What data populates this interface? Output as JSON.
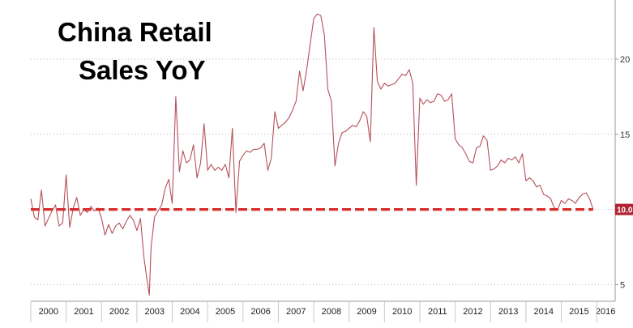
{
  "chart_data": {
    "type": "line",
    "title": "China Retail\nSales YoY",
    "title_lines": [
      "China Retail",
      "Sales YoY"
    ],
    "xlabel": "",
    "ylabel": "",
    "x_categories": [
      "2000",
      "2001",
      "2002",
      "2003",
      "2004",
      "2005",
      "2006",
      "2007",
      "2008",
      "2009",
      "2010",
      "2011",
      "2012",
      "2013",
      "2014",
      "2015",
      "2016"
    ],
    "y_ticks": [
      5,
      10,
      15,
      20
    ],
    "ylim": [
      4,
      23.5
    ],
    "xlim": [
      2000,
      2016.5
    ],
    "grid": true,
    "series": [
      {
        "color": "#b5505a",
        "x": [
          2000.0,
          2000.1,
          2000.2,
          2000.3,
          2000.4,
          2000.5,
          2000.6,
          2000.7,
          2000.8,
          2000.9,
          2001.0,
          2001.1,
          2001.2,
          2001.3,
          2001.4,
          2001.5,
          2001.6,
          2001.7,
          2001.8,
          2001.9,
          2002.0,
          2002.1,
          2002.2,
          2002.3,
          2002.4,
          2002.5,
          2002.6,
          2002.7,
          2002.8,
          2002.9,
          2003.0,
          2003.1,
          2003.2,
          2003.3,
          2003.35,
          2003.4,
          2003.5,
          2003.6,
          2003.7,
          2003.8,
          2003.9,
          2004.0,
          2004.1,
          2004.2,
          2004.3,
          2004.4,
          2004.5,
          2004.6,
          2004.7,
          2004.8,
          2004.9,
          2005.0,
          2005.1,
          2005.2,
          2005.3,
          2005.4,
          2005.5,
          2005.6,
          2005.7,
          2005.8,
          2005.9,
          2006.0,
          2006.1,
          2006.2,
          2006.3,
          2006.4,
          2006.5,
          2006.6,
          2006.7,
          2006.8,
          2006.9,
          2007.0,
          2007.1,
          2007.2,
          2007.3,
          2007.4,
          2007.5,
          2007.6,
          2007.7,
          2007.8,
          2007.9,
          2008.0,
          2008.1,
          2008.2,
          2008.3,
          2008.4,
          2008.5,
          2008.6,
          2008.7,
          2008.8,
          2008.9,
          2009.0,
          2009.1,
          2009.2,
          2009.3,
          2009.4,
          2009.5,
          2009.6,
          2009.7,
          2009.8,
          2009.9,
          2010.0,
          2010.1,
          2010.2,
          2010.3,
          2010.4,
          2010.5,
          2010.6,
          2010.7,
          2010.8,
          2010.9,
          2011.0,
          2011.1,
          2011.2,
          2011.3,
          2011.4,
          2011.5,
          2011.6,
          2011.7,
          2011.8,
          2011.9,
          2012.0,
          2012.1,
          2012.2,
          2012.3,
          2012.4,
          2012.5,
          2012.6,
          2012.7,
          2012.8,
          2012.9,
          2013.0,
          2013.1,
          2013.2,
          2013.3,
          2013.4,
          2013.5,
          2013.6,
          2013.7,
          2013.8,
          2013.9,
          2014.0,
          2014.1,
          2014.2,
          2014.3,
          2014.4,
          2014.5,
          2014.6,
          2014.7,
          2014.8,
          2014.9,
          2015.0,
          2015.1,
          2015.2,
          2015.3,
          2015.4,
          2015.5,
          2015.6,
          2015.7,
          2015.8,
          2015.9
        ],
        "values": [
          10.7,
          9.5,
          9.3,
          11.3,
          8.9,
          9.4,
          9.9,
          10.3,
          8.9,
          9.1,
          12.3,
          8.8,
          10.1,
          10.8,
          9.6,
          10.0,
          9.8,
          10.2,
          9.9,
          10.1,
          9.4,
          8.3,
          9.0,
          8.4,
          8.9,
          9.1,
          8.7,
          9.2,
          9.6,
          9.3,
          8.6,
          9.4,
          6.8,
          5.1,
          4.3,
          7.5,
          9.5,
          9.9,
          10.3,
          11.4,
          12.0,
          10.4,
          17.5,
          12.5,
          13.9,
          13.1,
          13.3,
          14.3,
          12.1,
          13.1,
          15.7,
          12.6,
          13.0,
          12.6,
          12.8,
          12.6,
          13.0,
          12.1,
          15.4,
          9.8,
          13.2,
          13.6,
          13.9,
          13.8,
          14.0,
          14.0,
          14.1,
          14.4,
          12.6,
          13.4,
          16.5,
          15.4,
          15.6,
          15.8,
          16.1,
          16.6,
          17.2,
          19.2,
          17.9,
          19.3,
          21.0,
          22.7,
          23.0,
          22.9,
          21.6,
          18.0,
          17.2,
          12.9,
          14.4,
          15.1,
          15.2,
          15.4,
          15.6,
          15.5,
          15.9,
          16.5,
          16.2,
          14.5,
          22.1,
          18.5,
          18.0,
          18.4,
          18.2,
          18.3,
          18.4,
          18.7,
          19.0,
          18.9,
          19.3,
          18.4,
          11.6,
          17.4,
          17.0,
          17.3,
          17.1,
          17.2,
          17.7,
          17.6,
          17.2,
          17.3,
          17.7,
          14.7,
          14.3,
          14.1,
          13.7,
          13.2,
          13.1,
          14.1,
          14.2,
          14.9,
          14.6,
          12.6,
          12.7,
          12.9,
          13.3,
          13.1,
          13.4,
          13.3,
          13.5,
          13.1,
          13.7,
          11.9,
          12.1,
          11.9,
          11.5,
          11.6,
          11.0,
          10.9,
          10.7,
          10.1,
          10.0,
          10.6,
          10.4,
          10.7,
          10.6,
          10.4,
          10.8,
          11.0,
          11.1,
          10.7,
          10.0
        ]
      }
    ],
    "reference_line": {
      "value": 10.0,
      "color": "#d62d2d",
      "style": "dashed"
    },
    "last_value_label": "10.0",
    "last_value_color": "#b22433"
  }
}
